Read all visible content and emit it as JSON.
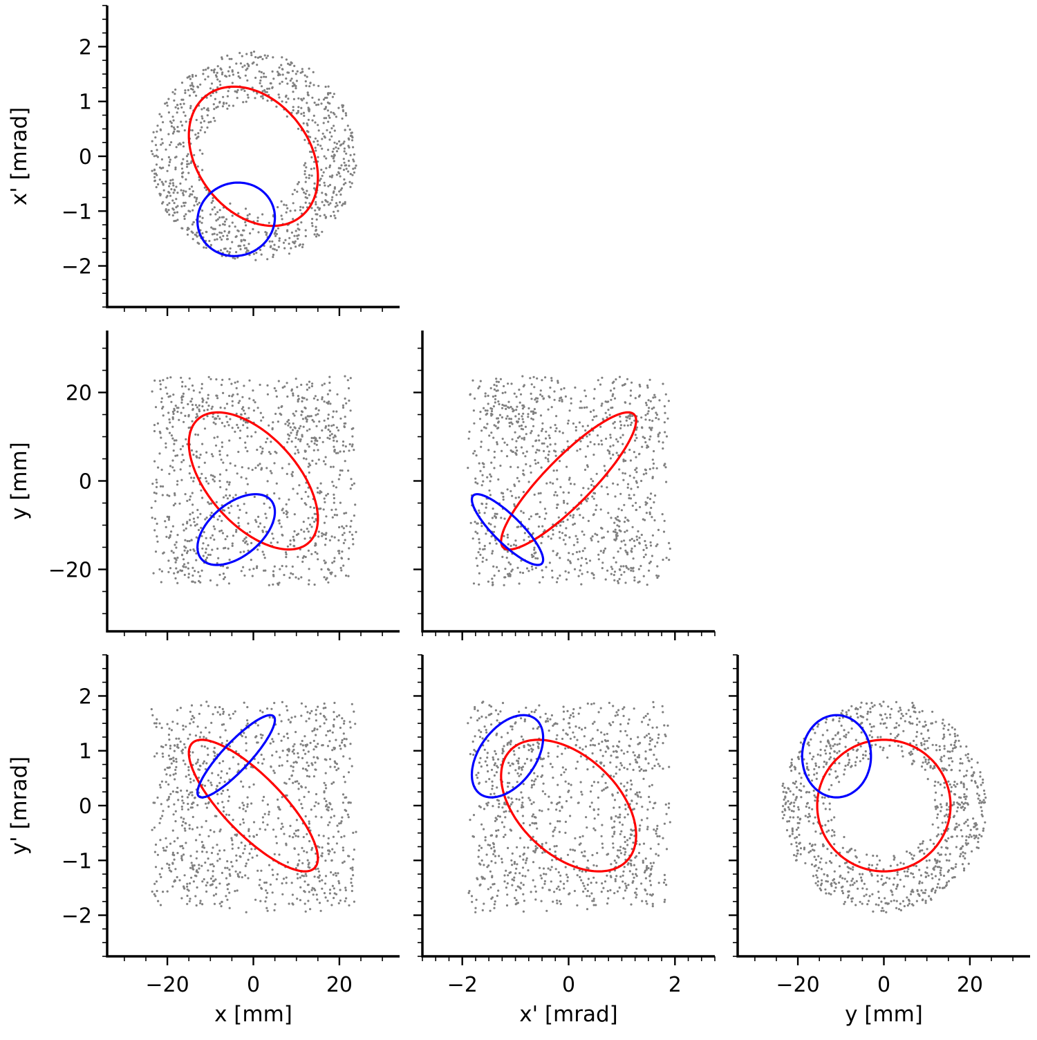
{
  "chart_data": {
    "type": "scatter",
    "title": "",
    "layout": "corner-plot 3x3 lower-triangle",
    "variables": {
      "x": {
        "label": "x [mm]",
        "lim": [
          -34,
          34
        ],
        "ticks": [
          -20,
          0,
          20
        ],
        "tick_labels": [
          "−20",
          "0",
          "20"
        ],
        "minor_step": 5
      },
      "xp": {
        "label": "x' [mrad]",
        "lim": [
          -2.75,
          2.75
        ],
        "ticks": [
          -2,
          0,
          2
        ],
        "tick_labels": [
          "−2",
          "0",
          "2"
        ],
        "minor_step": 0.25
      },
      "y": {
        "label": "y [mm]",
        "lim": [
          -34,
          34
        ],
        "ticks": [
          -20,
          0,
          20
        ],
        "tick_labels": [
          "−20",
          "0",
          "20"
        ],
        "minor_step": 5
      },
      "yp": {
        "label": "y' [mrad]",
        "lim": [
          -2.75,
          2.75
        ],
        "ticks": [
          -2,
          -1,
          0,
          1,
          2
        ],
        "tick_labels": [
          "−2",
          "−1",
          "0",
          "1",
          "2"
        ],
        "minor_step": 0.25
      }
    },
    "yaxis_overrides": {
      "xp": {
        "ticks": [
          -2,
          -1,
          0,
          1,
          2
        ],
        "tick_labels": [
          "−2",
          "−1",
          "0",
          "1",
          "2"
        ]
      }
    },
    "colors": {
      "scatter": "#808080",
      "ellipse_1": "#ff0000",
      "ellipse_2": "#0000ff"
    },
    "scatter_description": "Beam distribution (~1000 particles) shown as hollow ring in x-x' and y-y' planes, tilted bands in cross planes",
    "panels": [
      {
        "row": 0,
        "col": 0,
        "x": "x",
        "y": "xp",
        "ellipses": [
          {
            "name": "red",
            "center": [
              0,
              0
            ],
            "sigma": [
              15,
              1.27
            ],
            "rho": -0.3
          },
          {
            "name": "blue",
            "center": [
              -4,
              -1.15
            ],
            "sigma": [
              9,
              0.67
            ],
            "rho": 0.05
          }
        ]
      },
      {
        "row": 1,
        "col": 0,
        "x": "x",
        "y": "y",
        "ellipses": [
          {
            "name": "red",
            "center": [
              0,
              0
            ],
            "sigma": [
              15,
              15.5
            ],
            "rho": -0.55
          },
          {
            "name": "blue",
            "center": [
              -4,
              -11
            ],
            "sigma": [
              9,
              8
            ],
            "rho": 0.5
          }
        ]
      },
      {
        "row": 1,
        "col": 1,
        "x": "xp",
        "y": "y",
        "ellipses": [
          {
            "name": "red",
            "center": [
              0,
              0
            ],
            "sigma": [
              1.27,
              15.5
            ],
            "rho": 0.88
          },
          {
            "name": "blue",
            "center": [
              -1.15,
              -11
            ],
            "sigma": [
              0.67,
              8
            ],
            "rho": -0.85
          }
        ]
      },
      {
        "row": 2,
        "col": 0,
        "x": "x",
        "y": "yp",
        "ellipses": [
          {
            "name": "red",
            "center": [
              0,
              0
            ],
            "sigma": [
              15,
              1.2
            ],
            "rho": -0.8
          },
          {
            "name": "blue",
            "center": [
              -4,
              0.9
            ],
            "sigma": [
              9,
              0.75
            ],
            "rho": 0.88
          }
        ]
      },
      {
        "row": 2,
        "col": 1,
        "x": "xp",
        "y": "yp",
        "ellipses": [
          {
            "name": "red",
            "center": [
              0,
              0
            ],
            "sigma": [
              1.27,
              1.2
            ],
            "rho": -0.45
          },
          {
            "name": "blue",
            "center": [
              -1.15,
              0.9
            ],
            "sigma": [
              0.67,
              0.75
            ],
            "rho": 0.45
          }
        ]
      },
      {
        "row": 2,
        "col": 2,
        "x": "y",
        "y": "yp",
        "ellipses": [
          {
            "name": "red",
            "center": [
              0,
              0
            ],
            "sigma": [
              15.5,
              1.2
            ],
            "rho": 0
          },
          {
            "name": "blue",
            "center": [
              -11,
              0.9
            ],
            "sigma": [
              8,
              0.75
            ],
            "rho": 0
          }
        ]
      }
    ],
    "beam": {
      "ring_x": {
        "outer": [
          24,
          1.95
        ],
        "inner": [
          7,
          0.6
        ]
      },
      "ring_y": {
        "outer": [
          24,
          1.95
        ],
        "inner": [
          7,
          0.45
        ]
      },
      "n_points": 1000
    }
  }
}
